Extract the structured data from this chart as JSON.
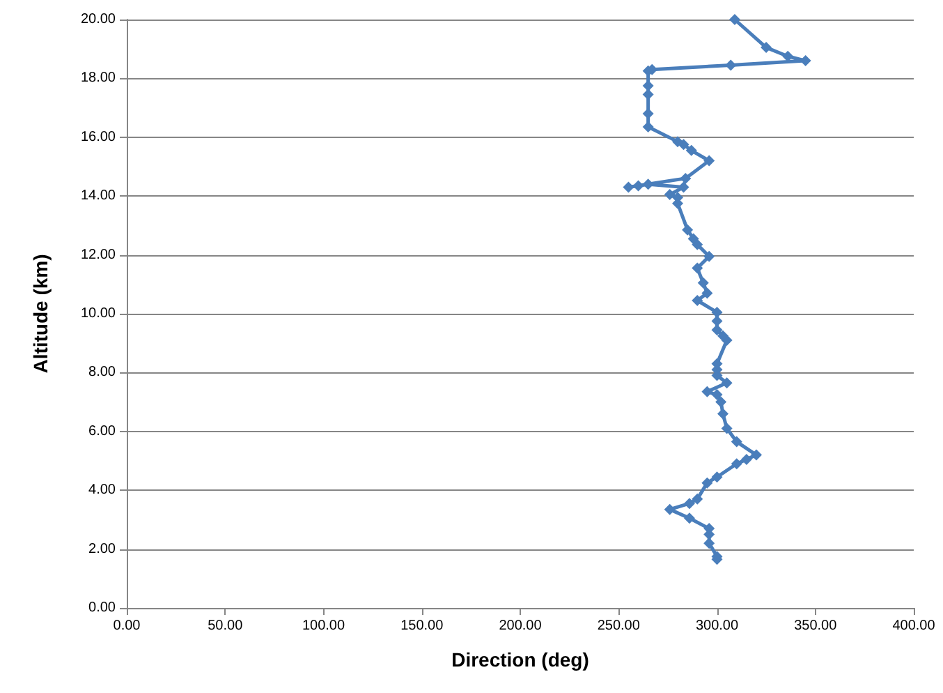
{
  "chart_data": {
    "type": "line",
    "xlabel": "Direction (deg)",
    "ylabel": "Altitude (km)",
    "xlim": [
      0,
      400
    ],
    "ylim": [
      0,
      20
    ],
    "xticks": [
      {
        "value": 0,
        "label": "0.00"
      },
      {
        "value": 50,
        "label": "50.00"
      },
      {
        "value": 100,
        "label": "100.00"
      },
      {
        "value": 150,
        "label": "150.00"
      },
      {
        "value": 200,
        "label": "200.00"
      },
      {
        "value": 250,
        "label": "250.00"
      },
      {
        "value": 300,
        "label": "300.00"
      },
      {
        "value": 350,
        "label": "350.00"
      },
      {
        "value": 400,
        "label": "400.00"
      }
    ],
    "yticks": [
      {
        "value": 0,
        "label": "0.00"
      },
      {
        "value": 2,
        "label": "2.00"
      },
      {
        "value": 4,
        "label": "4.00"
      },
      {
        "value": 6,
        "label": "6.00"
      },
      {
        "value": 8,
        "label": "8.00"
      },
      {
        "value": 10,
        "label": "10.00"
      },
      {
        "value": 12,
        "label": "12.00"
      },
      {
        "value": 14,
        "label": "14.00"
      },
      {
        "value": 16,
        "label": "16.00"
      },
      {
        "value": 18,
        "label": "18.00"
      },
      {
        "value": 20,
        "label": "20.00"
      }
    ],
    "grid": "y",
    "marker": "diamond",
    "line_style": "solid",
    "series": [
      {
        "color": "#4a7ebb",
        "x": [
          300,
          300,
          296,
          296,
          296,
          286,
          276,
          286,
          290,
          295,
          300,
          310,
          315,
          320,
          310,
          305,
          303,
          302,
          300,
          295,
          305,
          300,
          300,
          300,
          305,
          303,
          300,
          300,
          300,
          290,
          295,
          293,
          290,
          296,
          290,
          288,
          285,
          280,
          280,
          276,
          283,
          265,
          260,
          255,
          284,
          296,
          287,
          283,
          280,
          265,
          265,
          265,
          265,
          265,
          267,
          307,
          345,
          336,
          325,
          309
        ],
        "values": [
          1.65,
          1.75,
          2.2,
          2.5,
          2.7,
          3.05,
          3.35,
          3.55,
          3.7,
          4.25,
          4.45,
          4.9,
          5.05,
          5.2,
          5.65,
          6.1,
          6.6,
          7.0,
          7.25,
          7.35,
          7.65,
          7.9,
          8.1,
          8.3,
          9.1,
          9.25,
          9.45,
          9.75,
          10.05,
          10.45,
          10.7,
          11.05,
          11.55,
          11.95,
          12.35,
          12.55,
          12.85,
          13.75,
          13.95,
          14.05,
          14.3,
          14.4,
          14.35,
          14.3,
          14.6,
          15.2,
          15.55,
          15.75,
          15.85,
          16.35,
          16.8,
          17.45,
          17.75,
          18.25,
          18.3,
          18.45,
          18.6,
          18.75,
          19.05,
          20
        ]
      }
    ]
  }
}
